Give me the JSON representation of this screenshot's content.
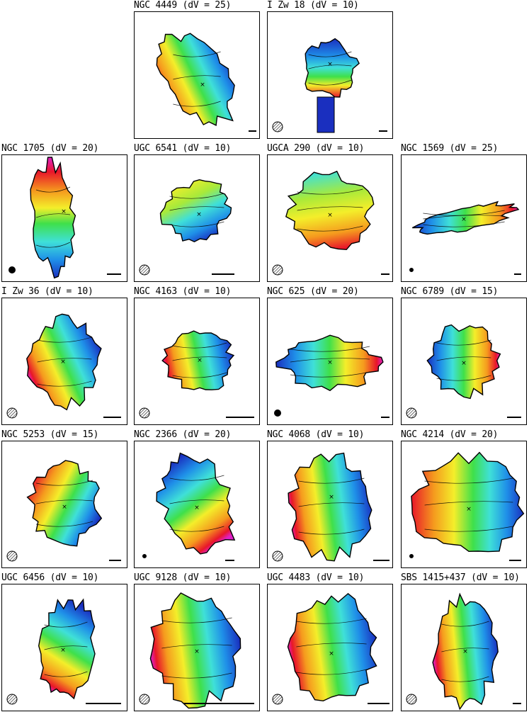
{
  "figure": {
    "panels": [
      {
        "id": "ngc4449",
        "title": "NGC 4449 (dV = 25)",
        "beam_hatched": false,
        "beam_visible": false
      },
      {
        "id": "izw18",
        "title": "I Zw 18 (dV = 10)",
        "beam_hatched": true,
        "beam_visible": true
      },
      {
        "id": "ngc1705",
        "title": "NGC 1705 (dV = 20)",
        "beam_hatched": false,
        "beam_visible": true
      },
      {
        "id": "ugc6541",
        "title": "UGC 6541 (dV = 10)",
        "beam_hatched": true,
        "beam_visible": true
      },
      {
        "id": "ugca290",
        "title": "UGCA 290 (dV = 10)",
        "beam_hatched": true,
        "beam_visible": true
      },
      {
        "id": "ngc1569",
        "title": "NGC 1569 (dV = 25)",
        "beam_hatched": false,
        "beam_visible": true
      },
      {
        "id": "izw36",
        "title": "I Zw 36 (dV = 10)",
        "beam_hatched": true,
        "beam_visible": true
      },
      {
        "id": "ngc4163",
        "title": "NGC 4163 (dV = 10)",
        "beam_hatched": true,
        "beam_visible": true
      },
      {
        "id": "ngc625",
        "title": "NGC 625 (dV = 20)",
        "beam_hatched": false,
        "beam_visible": true
      },
      {
        "id": "ngc6789",
        "title": "NGC 6789 (dV = 15)",
        "beam_hatched": true,
        "beam_visible": true
      },
      {
        "id": "ngc5253",
        "title": "NGC 5253 (dV = 15)",
        "beam_hatched": true,
        "beam_visible": true
      },
      {
        "id": "ngc2366",
        "title": "NGC 2366 (dV = 20)",
        "beam_hatched": false,
        "beam_visible": true
      },
      {
        "id": "ngc4068",
        "title": "NGC 4068 (dV = 10)",
        "beam_hatched": true,
        "beam_visible": true
      },
      {
        "id": "ngc4214",
        "title": "NGC 4214 (dV = 20)",
        "beam_hatched": false,
        "beam_visible": true
      },
      {
        "id": "ugc6456",
        "title": "UGC 6456 (dV = 10)",
        "beam_hatched": true,
        "beam_visible": true
      },
      {
        "id": "ugc9128",
        "title": "UGC 9128 (dV = 10)",
        "beam_hatched": true,
        "beam_visible": true
      },
      {
        "id": "ugc4483",
        "title": "UGC 4483 (dV = 10)",
        "beam_hatched": true,
        "beam_visible": true
      },
      {
        "id": "sbs1415",
        "title": "SBS 1415+437 (dV = 10)",
        "beam_hatched": true,
        "beam_visible": true
      }
    ],
    "colors": {
      "blueshift": "#1a2fbf",
      "systemic": "#3fe04a",
      "redshift": "#e8162a",
      "extreme": "#e020c8",
      "contour": "#000000"
    }
  }
}
